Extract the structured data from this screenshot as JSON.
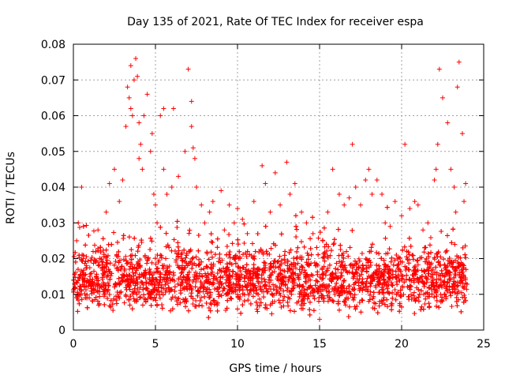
{
  "chart_data": {
    "type": "scatter",
    "title": "Day 135 of 2021, Rate Of TEC Index for receiver espa",
    "xlabel": "GPS time / hours",
    "ylabel": "ROTI / TECUs",
    "xlim": [
      0,
      25
    ],
    "ylim": [
      0,
      0.08
    ],
    "x_ticks": [
      0,
      5,
      10,
      15,
      20,
      25
    ],
    "x_tick_labels": [
      "0",
      "5",
      "10",
      "15",
      "20",
      "25"
    ],
    "y_ticks": [
      0,
      0.01,
      0.02,
      0.03,
      0.04,
      0.05,
      0.06,
      0.07,
      0.08
    ],
    "y_tick_labels": [
      "0",
      "0.01",
      "0.02",
      "0.03",
      "0.04",
      "0.05",
      "0.06",
      "0.07",
      "0.08"
    ],
    "grid": true,
    "marker": "plus",
    "color": "#ff0000",
    "series": [
      {
        "x": [
          0.1,
          0.2,
          0.3,
          0.4,
          0.5,
          0.5,
          0.6,
          0.8,
          1.0,
          1.2,
          1.5,
          1.8,
          2.0,
          2.2,
          2.5,
          2.8,
          3.0,
          3.2,
          3.3,
          3.4,
          3.5,
          3.5,
          3.6,
          3.7,
          3.8,
          3.9,
          4.0,
          4.0,
          4.1,
          4.2,
          4.3,
          4.5,
          4.7,
          4.8,
          4.9,
          5.0,
          5.1,
          5.3,
          5.5,
          5.5,
          5.7,
          6.0,
          6.1,
          6.4,
          6.8,
          7.0,
          7.2,
          7.2,
          7.3,
          7.4,
          7.5,
          7.8,
          8.0,
          8.3,
          8.5,
          9.0,
          9.2,
          9.5,
          9.8,
          10.0,
          10.3,
          10.6,
          11.0,
          11.5,
          11.7,
          12.0,
          12.3,
          12.6,
          13.0,
          13.2,
          13.5,
          13.9,
          14.2,
          14.6,
          15.0,
          15.2,
          15.5,
          15.8,
          16.2,
          16.5,
          16.8,
          17.0,
          17.2,
          17.5,
          17.8,
          18.0,
          18.2,
          18.5,
          18.8,
          19.0,
          19.3,
          19.6,
          20.0,
          20.2,
          20.5,
          20.8,
          21.0,
          21.3,
          21.6,
          22.0,
          22.1,
          22.2,
          22.3,
          22.5,
          22.8,
          23.0,
          23.2,
          23.3,
          23.4,
          23.5,
          23.7,
          23.8,
          23.9
        ],
        "y": [
          0.012,
          0.025,
          0.03,
          0.015,
          0.04,
          0.011,
          0.02,
          0.018,
          0.015,
          0.022,
          0.028,
          0.019,
          0.033,
          0.041,
          0.045,
          0.036,
          0.042,
          0.057,
          0.068,
          0.065,
          0.062,
          0.074,
          0.06,
          0.07,
          0.076,
          0.071,
          0.058,
          0.048,
          0.052,
          0.045,
          0.06,
          0.066,
          0.05,
          0.055,
          0.038,
          0.035,
          0.03,
          0.06,
          0.062,
          0.045,
          0.038,
          0.04,
          0.062,
          0.043,
          0.05,
          0.073,
          0.064,
          0.057,
          0.051,
          0.048,
          0.04,
          0.035,
          0.03,
          0.033,
          0.036,
          0.039,
          0.028,
          0.035,
          0.03,
          0.034,
          0.031,
          0.027,
          0.036,
          0.046,
          0.041,
          0.033,
          0.044,
          0.035,
          0.047,
          0.038,
          0.041,
          0.033,
          0.03,
          0.027,
          0.003,
          0.025,
          0.033,
          0.045,
          0.038,
          0.035,
          0.037,
          0.052,
          0.04,
          0.035,
          0.042,
          0.045,
          0.038,
          0.042,
          0.038,
          0.03,
          0.029,
          0.036,
          0.032,
          0.052,
          0.034,
          0.036,
          0.035,
          0.028,
          0.03,
          0.042,
          0.045,
          0.052,
          0.073,
          0.065,
          0.058,
          0.045,
          0.04,
          0.033,
          0.068,
          0.075,
          0.055,
          0.036,
          0.041
        ],
        "dense_band": {
          "x_range": [
            0,
            24
          ],
          "y_typical": [
            0.005,
            0.025
          ],
          "y_median": 0.013,
          "y_min": 0.003
        }
      }
    ]
  }
}
